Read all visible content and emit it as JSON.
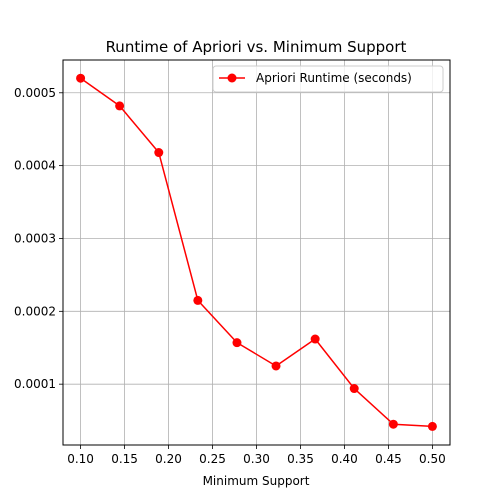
{
  "chart_data": {
    "type": "line",
    "title": "Runtime of Apriori vs. Minimum Support",
    "xlabel": "Minimum Support",
    "ylabel": "",
    "x": [
      0.1,
      0.1444,
      0.1889,
      0.2333,
      0.2778,
      0.3222,
      0.3667,
      0.4111,
      0.4556,
      0.5
    ],
    "series": [
      {
        "name": "Apriori Runtime (seconds)",
        "color": "#ff0000",
        "marker": "circle",
        "values": [
          0.00052,
          0.000482,
          0.000418,
          0.000215,
          0.000157,
          0.000125,
          0.000162,
          9.4e-05,
          4.5e-05,
          4.2e-05
        ]
      }
    ],
    "xlim": [
      0.08,
      0.52
    ],
    "ylim": [
      1.65e-05,
      0.000545
    ],
    "xticks": [
      0.1,
      0.15,
      0.2,
      0.25,
      0.3,
      0.35,
      0.4,
      0.45,
      0.5
    ],
    "xtick_labels": [
      "0.10",
      "0.15",
      "0.20",
      "0.25",
      "0.30",
      "0.35",
      "0.40",
      "0.45",
      "0.50"
    ],
    "yticks": [
      0.0001,
      0.0002,
      0.0003,
      0.0004,
      0.0005
    ],
    "ytick_labels": [
      "0.0001",
      "0.0002",
      "0.0003",
      "0.0004",
      "0.0005"
    ],
    "grid": true,
    "legend_position": "top-right"
  }
}
